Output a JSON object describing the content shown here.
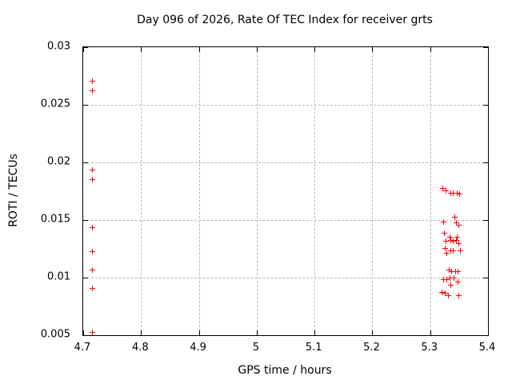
{
  "chart_data": {
    "type": "scatter",
    "title": "Day 096 of 2026, Rate Of TEC Index for receiver grts",
    "xlabel": "GPS time / hours",
    "ylabel": "ROTI / TECUs",
    "xlim": [
      4.7,
      5.4
    ],
    "ylim": [
      0.005,
      0.03
    ],
    "x_ticks": [
      4.7,
      4.8,
      4.9,
      5.0,
      5.1,
      5.2,
      5.3,
      5.4
    ],
    "x_tick_labels": [
      "4.7",
      "4.8",
      "4.9",
      "5",
      "5.1",
      "5.2",
      "5.3",
      "5.4"
    ],
    "y_ticks": [
      0.005,
      0.01,
      0.015,
      0.02,
      0.025,
      0.03
    ],
    "y_tick_labels": [
      "0.005",
      "0.01",
      "0.015",
      "0.02",
      "0.025",
      "0.03"
    ],
    "grid": true,
    "legend": false,
    "marker": "plus",
    "marker_color": "#ff0000",
    "series": [
      {
        "name": "ROTI",
        "points": [
          [
            4.716,
            0.027
          ],
          [
            4.716,
            0.0262
          ],
          [
            4.716,
            0.0193
          ],
          [
            4.716,
            0.0185
          ],
          [
            4.716,
            0.0143
          ],
          [
            4.716,
            0.0122
          ],
          [
            4.716,
            0.0106
          ],
          [
            4.716,
            0.009
          ],
          [
            4.716,
            0.0052
          ],
          [
            5.322,
            0.0177
          ],
          [
            5.328,
            0.0175
          ],
          [
            5.336,
            0.0173
          ],
          [
            5.341,
            0.0173
          ],
          [
            5.347,
            0.0173
          ],
          [
            5.352,
            0.0172
          ],
          [
            5.343,
            0.0152
          ],
          [
            5.324,
            0.0148
          ],
          [
            5.346,
            0.0147
          ],
          [
            5.35,
            0.0145
          ],
          [
            5.325,
            0.0138
          ],
          [
            5.335,
            0.0135
          ],
          [
            5.348,
            0.0135
          ],
          [
            5.336,
            0.0132
          ],
          [
            5.346,
            0.0132
          ],
          [
            5.328,
            0.0131
          ],
          [
            5.341,
            0.0131
          ],
          [
            5.35,
            0.0129
          ],
          [
            5.326,
            0.0125
          ],
          [
            5.336,
            0.0123
          ],
          [
            5.341,
            0.0123
          ],
          [
            5.353,
            0.0123
          ],
          [
            5.33,
            0.0121
          ],
          [
            5.333,
            0.0106
          ],
          [
            5.338,
            0.0105
          ],
          [
            5.344,
            0.0105
          ],
          [
            5.349,
            0.0105
          ],
          [
            5.324,
            0.0098
          ],
          [
            5.329,
            0.0098
          ],
          [
            5.335,
            0.0099
          ],
          [
            5.342,
            0.0099
          ],
          [
            5.349,
            0.0096
          ],
          [
            5.337,
            0.0093
          ],
          [
            5.321,
            0.0087
          ],
          [
            5.326,
            0.0086
          ],
          [
            5.332,
            0.0084
          ],
          [
            5.35,
            0.0084
          ]
        ]
      }
    ]
  }
}
